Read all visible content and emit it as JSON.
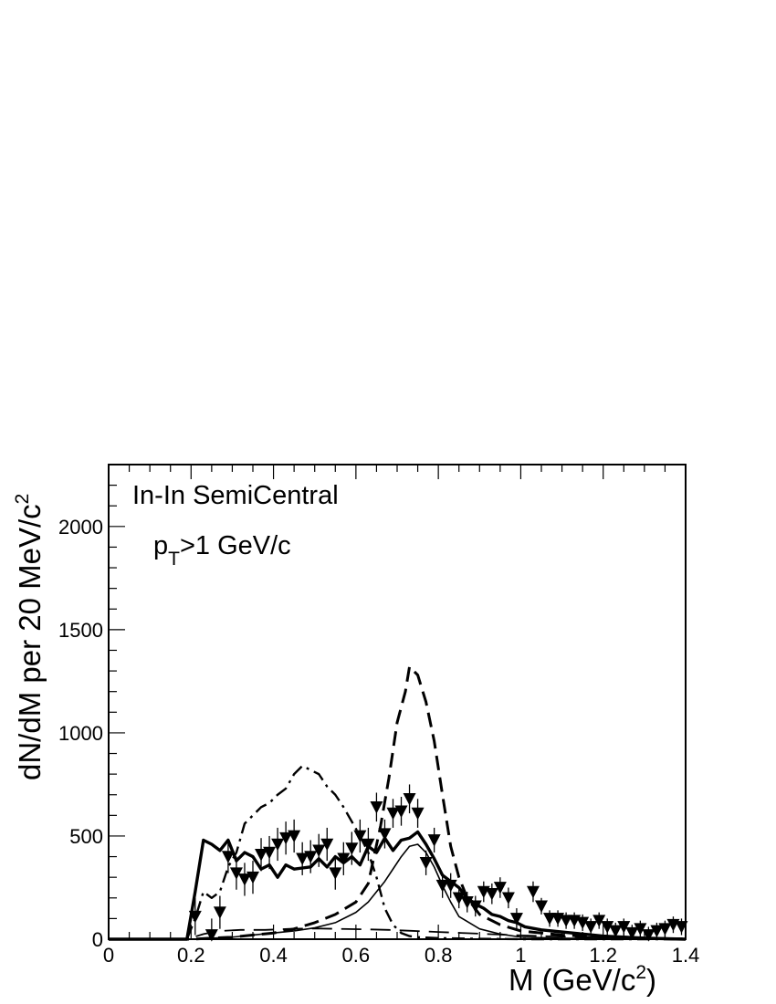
{
  "chart_data": {
    "type": "line",
    "title": "",
    "annotations": [
      "In-In SemiCentral",
      "p",
      "T",
      ">1 GeV/c"
    ],
    "xlabel": {
      "text": "M (GeV/c",
      "sup": "2",
      "close": ")"
    },
    "ylabel": {
      "text": "dN/dM per 20 MeV/c",
      "sup": "2"
    },
    "xlim": [
      0,
      1.4
    ],
    "ylim": [
      0,
      2300
    ],
    "x_ticks": [
      0,
      0.2,
      0.4,
      0.6,
      0.8,
      1,
      1.2,
      1.4
    ],
    "x_tick_labels": [
      "0",
      "0.2",
      "0.4",
      "0.6",
      "0.8",
      "1",
      "1.2",
      "1.4"
    ],
    "y_ticks": [
      0,
      500,
      1000,
      1500,
      2000
    ],
    "y_tick_labels": [
      "0",
      "500",
      "1000",
      "1500",
      "2000"
    ],
    "grid": false,
    "legend": "none",
    "series": [
      {
        "style": "thick-solid",
        "x": [
          0,
          0.19,
          0.21,
          0.23,
          0.25,
          0.27,
          0.29,
          0.31,
          0.33,
          0.35,
          0.37,
          0.39,
          0.41,
          0.43,
          0.45,
          0.47,
          0.49,
          0.51,
          0.53,
          0.55,
          0.57,
          0.59,
          0.61,
          0.63,
          0.65,
          0.67,
          0.69,
          0.71,
          0.73,
          0.75,
          0.77,
          0.79,
          0.81,
          0.83,
          0.85,
          0.87,
          0.89,
          0.91,
          0.93,
          0.95,
          0.97,
          0.99,
          1.01,
          1.05,
          1.1,
          1.15,
          1.2,
          1.25,
          1.3,
          1.4
        ],
        "y": [
          0,
          0,
          230,
          480,
          460,
          430,
          480,
          380,
          420,
          400,
          340,
          360,
          300,
          360,
          340,
          345,
          350,
          390,
          350,
          400,
          370,
          400,
          360,
          450,
          420,
          490,
          430,
          480,
          490,
          520,
          460,
          390,
          310,
          280,
          250,
          200,
          170,
          150,
          120,
          110,
          90,
          80,
          60,
          45,
          35,
          25,
          15,
          10,
          5,
          0
        ]
      },
      {
        "style": "dashed",
        "x": [
          0,
          0.2,
          0.3,
          0.4,
          0.45,
          0.5,
          0.55,
          0.6,
          0.63,
          0.66,
          0.68,
          0.7,
          0.72,
          0.73,
          0.75,
          0.77,
          0.79,
          0.81,
          0.83,
          0.85,
          0.87,
          0.9,
          0.95,
          1.0,
          1.1,
          1.2,
          1.3,
          1.4
        ],
        "y": [
          0,
          0,
          10,
          30,
          50,
          80,
          120,
          180,
          270,
          550,
          780,
          1050,
          1200,
          1320,
          1280,
          1150,
          960,
          700,
          450,
          300,
          200,
          120,
          70,
          40,
          20,
          10,
          5,
          0
        ]
      },
      {
        "style": "dash-dot",
        "x": [
          0,
          0.19,
          0.21,
          0.23,
          0.25,
          0.27,
          0.29,
          0.31,
          0.33,
          0.35,
          0.37,
          0.39,
          0.41,
          0.43,
          0.45,
          0.47,
          0.49,
          0.51,
          0.53,
          0.55,
          0.57,
          0.59,
          0.61,
          0.63,
          0.65,
          0.67,
          0.69,
          0.71,
          0.73,
          0.75,
          0.8,
          0.9,
          1.0,
          1.4
        ],
        "y": [
          0,
          0,
          100,
          230,
          200,
          230,
          350,
          420,
          560,
          600,
          640,
          660,
          700,
          730,
          800,
          840,
          820,
          800,
          740,
          700,
          640,
          570,
          500,
          420,
          300,
          150,
          70,
          30,
          15,
          10,
          5,
          2,
          0,
          0
        ]
      },
      {
        "style": "thin-solid",
        "x": [
          0,
          0.2,
          0.3,
          0.35,
          0.4,
          0.45,
          0.5,
          0.55,
          0.6,
          0.63,
          0.65,
          0.67,
          0.69,
          0.71,
          0.73,
          0.75,
          0.77,
          0.79,
          0.81,
          0.83,
          0.85,
          0.9,
          0.95,
          1.0,
          1.1,
          1.2,
          1.4
        ],
        "y": [
          0,
          0,
          10,
          20,
          30,
          40,
          55,
          80,
          130,
          180,
          230,
          280,
          340,
          400,
          450,
          460,
          420,
          350,
          260,
          180,
          110,
          50,
          25,
          10,
          5,
          2,
          0
        ]
      },
      {
        "style": "long-dash",
        "x": [
          0,
          0.19,
          0.23,
          0.27,
          0.32,
          0.38,
          0.44,
          0.5,
          0.56,
          0.62,
          0.68,
          0.74,
          0.8,
          0.86,
          0.92,
          0.98,
          1.05,
          1.15,
          1.25,
          1.35,
          1.4
        ],
        "y": [
          0,
          0,
          25,
          40,
          45,
          45,
          50,
          52,
          50,
          48,
          45,
          40,
          35,
          30,
          25,
          20,
          15,
          10,
          8,
          5,
          5
        ]
      },
      {
        "style": "markers",
        "marker": "filled-triangle-down",
        "x": [
          0.21,
          0.25,
          0.27,
          0.29,
          0.31,
          0.33,
          0.35,
          0.37,
          0.39,
          0.41,
          0.43,
          0.45,
          0.47,
          0.49,
          0.51,
          0.53,
          0.55,
          0.57,
          0.59,
          0.61,
          0.63,
          0.65,
          0.67,
          0.69,
          0.71,
          0.73,
          0.75,
          0.77,
          0.79,
          0.81,
          0.83,
          0.85,
          0.87,
          0.89,
          0.91,
          0.93,
          0.95,
          0.97,
          0.99,
          1.03,
          1.05,
          1.07,
          1.09,
          1.11,
          1.13,
          1.15,
          1.17,
          1.19,
          1.21,
          1.23,
          1.25,
          1.27,
          1.29,
          1.31,
          1.33,
          1.35,
          1.37,
          1.39
        ],
        "y": [
          110,
          20,
          130,
          400,
          320,
          290,
          300,
          410,
          420,
          460,
          490,
          500,
          390,
          400,
          430,
          460,
          320,
          390,
          440,
          500,
          460,
          640,
          510,
          610,
          620,
          680,
          610,
          370,
          480,
          260,
          260,
          200,
          180,
          160,
          230,
          220,
          250,
          200,
          100,
          230,
          160,
          100,
          100,
          90,
          90,
          80,
          60,
          90,
          60,
          40,
          60,
          30,
          50,
          20,
          40,
          50,
          70,
          60
        ],
        "err": [
          90,
          80,
          80,
          80,
          80,
          80,
          80,
          80,
          80,
          80,
          80,
          80,
          80,
          80,
          80,
          80,
          80,
          80,
          80,
          80,
          80,
          70,
          70,
          70,
          70,
          70,
          70,
          60,
          60,
          60,
          60,
          50,
          50,
          50,
          50,
          50,
          50,
          50,
          50,
          50,
          40,
          40,
          40,
          40,
          40,
          40,
          40,
          40,
          40,
          40,
          40,
          40,
          40,
          40,
          40,
          40,
          40,
          40
        ]
      }
    ]
  }
}
